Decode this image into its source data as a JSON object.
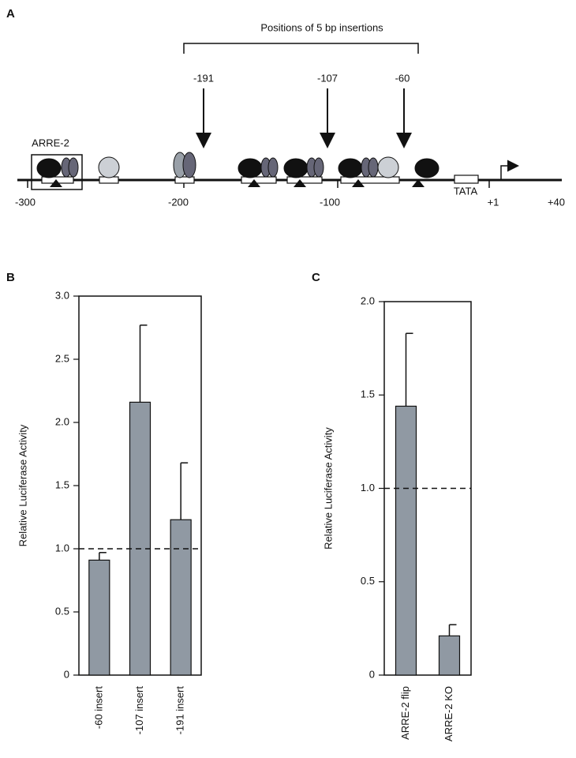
{
  "panel_a": {
    "label": "A",
    "title": "Positions of 5 bp insertions",
    "insertions": [
      "-191",
      "-107",
      "-60"
    ],
    "element": "ARRE-2",
    "tata": "TATA",
    "scale": [
      "-300",
      "-200",
      "-100",
      "+1",
      "+40"
    ]
  },
  "chart_data": [
    {
      "type": "bar",
      "label": "B",
      "ylabel": "Relative Luciferase Activity",
      "categories": [
        "-60 insert",
        "-107 insert",
        "-191 insert"
      ],
      "values": [
        0.91,
        2.16,
        1.23
      ],
      "errors": [
        0.06,
        0.61,
        0.45
      ],
      "color": "#9099a3",
      "ylim": [
        0,
        3
      ],
      "yticks": [
        0,
        0.5,
        {
          "value": 1,
          "label": "1.0"
        },
        1.5,
        {
          "value": 2,
          "label": "2.0"
        },
        2.5,
        {
          "value": 3,
          "label": "3.0"
        }
      ],
      "reference_line": 1
    },
    {
      "type": "bar",
      "label": "C",
      "ylabel": "Relative Luciferase Activity",
      "categories": [
        "ARRE-2 flip",
        "ARRE-2 KO"
      ],
      "values": [
        1.44,
        0.21
      ],
      "errors": [
        0.39,
        0.06
      ],
      "color": "#9099a3",
      "ylim": [
        0,
        2
      ],
      "yticks": [
        0,
        0.5,
        {
          "value": 1,
          "label": "1.0"
        },
        1.5,
        {
          "value": 2,
          "label": "2.0"
        }
      ],
      "reference_line": 1
    }
  ]
}
